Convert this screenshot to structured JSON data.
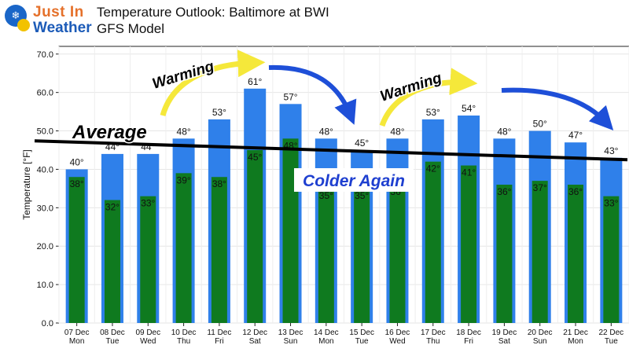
{
  "logo": {
    "line1": "Just In",
    "line2": "Weather"
  },
  "title": {
    "line1": "Temperature Outlook: Baltimore at BWI",
    "line2": "GFS Model"
  },
  "chart_data": {
    "type": "bar",
    "categories": [
      [
        "07 Dec",
        "Mon"
      ],
      [
        "08 Dec",
        "Tue"
      ],
      [
        "09 Dec",
        "Wed"
      ],
      [
        "10 Dec",
        "Thu"
      ],
      [
        "11 Dec",
        "Fri"
      ],
      [
        "12 Dec",
        "Sat"
      ],
      [
        "13 Dec",
        "Sun"
      ],
      [
        "14 Dec",
        "Mon"
      ],
      [
        "15 Dec",
        "Tue"
      ],
      [
        "16 Dec",
        "Wed"
      ],
      [
        "17 Dec",
        "Thu"
      ],
      [
        "18 Dec",
        "Fri"
      ],
      [
        "19 Dec",
        "Sat"
      ],
      [
        "20 Dec",
        "Sun"
      ],
      [
        "21 Dec",
        "Mon"
      ],
      [
        "22 Dec",
        "Tue"
      ]
    ],
    "series": [
      {
        "values": [
          40,
          44,
          44,
          48,
          53,
          61,
          57,
          48,
          45,
          48,
          53,
          54,
          48,
          50,
          47,
          43
        ],
        "color": "#2f80ea"
      },
      {
        "values": [
          38,
          32,
          33,
          39,
          38,
          45,
          48,
          35,
          35,
          36,
          42,
          41,
          36,
          37,
          36,
          33
        ],
        "color": "#0f7a1f"
      }
    ],
    "ylabel": "Temperature [°F]",
    "ylim": [
      0,
      72
    ],
    "yticks": [
      "0.0",
      "10.0",
      "20.0",
      "30.0",
      "40.0",
      "50.0",
      "60.0",
      "70.0"
    ],
    "ytick_values": [
      0,
      10,
      20,
      30,
      40,
      50,
      60,
      70
    ],
    "label_suffix": "°",
    "grid": true,
    "average_line": {
      "label": "Average",
      "start": 47,
      "end": 42.5,
      "color": "#000000"
    },
    "annotations": [
      {
        "text": "Warming",
        "kind": "arrow",
        "color": "#f5e83a"
      },
      {
        "text": "Warming",
        "kind": "arrow",
        "color": "#f5e83a"
      },
      {
        "text": "",
        "kind": "arrow",
        "color": "#1e4fd8"
      },
      {
        "text": "",
        "kind": "arrow",
        "color": "#1e4fd8"
      },
      {
        "text": "Colder Again",
        "kind": "label",
        "color": "#1e3fd0"
      }
    ]
  }
}
